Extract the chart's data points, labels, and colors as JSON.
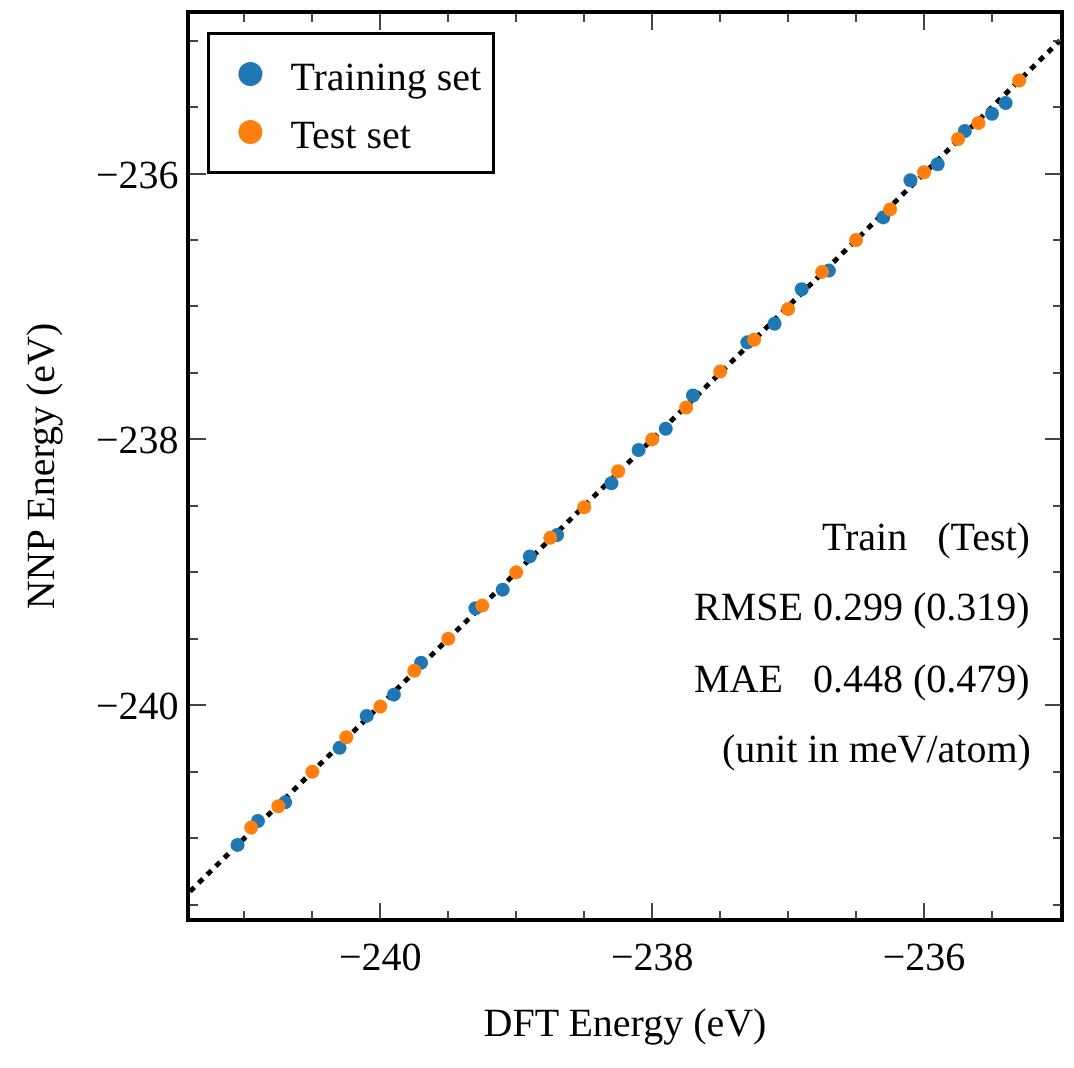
{
  "chart_data": {
    "type": "scatter",
    "xlabel": "DFT Energy (eV)",
    "ylabel": "NNP Energy (eV)",
    "xlim": [
      -241.4,
      -235.0
    ],
    "ylim": [
      -241.6,
      -234.8
    ],
    "xticks": [
      {
        "value": -241,
        "label": null
      },
      {
        "value": -240.5,
        "label": null
      },
      {
        "value": -240,
        "label": "−240"
      },
      {
        "value": -239.5,
        "label": null
      },
      {
        "value": -239,
        "label": null
      },
      {
        "value": -238.5,
        "label": null
      },
      {
        "value": -238,
        "label": "−238"
      },
      {
        "value": -237.5,
        "label": null
      },
      {
        "value": -237,
        "label": null
      },
      {
        "value": -236.5,
        "label": null
      },
      {
        "value": -236,
        "label": "−236"
      },
      {
        "value": -235.5,
        "label": null
      }
    ],
    "yticks": [
      {
        "value": -241.5,
        "label": null
      },
      {
        "value": -241,
        "label": null
      },
      {
        "value": -240.5,
        "label": null
      },
      {
        "value": -240,
        "label": "−240"
      },
      {
        "value": -239.5,
        "label": null
      },
      {
        "value": -239,
        "label": null
      },
      {
        "value": -238.5,
        "label": null
      },
      {
        "value": -238,
        "label": "−238"
      },
      {
        "value": -237.5,
        "label": null
      },
      {
        "value": -237,
        "label": null
      },
      {
        "value": -236.5,
        "label": null
      },
      {
        "value": -236,
        "label": "−236"
      },
      {
        "value": -235.5,
        "label": null
      },
      {
        "value": -235,
        "label": null
      }
    ],
    "marker": "circle",
    "legend": "top left",
    "series": [
      {
        "name": "Training set",
        "color": "#1f77b4",
        "x": [
          -241.05,
          -240.9,
          -240.7,
          -240.5,
          -240.3,
          -240.1,
          -239.9,
          -239.7,
          -239.5,
          -239.3,
          -239.1,
          -238.9,
          -238.7,
          -238.5,
          -238.3,
          -238.1,
          -237.9,
          -237.7,
          -237.5,
          -237.3,
          -237.1,
          -236.9,
          -236.7,
          -236.5,
          -236.3,
          -236.1,
          -235.9,
          -235.7,
          -235.5,
          -235.4
        ],
        "values": [
          -241.05,
          -240.87,
          -240.73,
          null,
          -240.32,
          -240.08,
          -239.92,
          -239.68,
          null,
          -239.27,
          -239.13,
          -238.88,
          -238.72,
          null,
          -238.33,
          -238.08,
          -237.92,
          -237.67,
          null,
          -237.27,
          -237.13,
          -236.87,
          -236.73,
          null,
          -236.33,
          -236.05,
          -235.93,
          -235.68,
          -235.55,
          -235.47
        ]
      },
      {
        "name": "Test set",
        "color": "#ff7f0e",
        "x": [
          -240.95,
          -240.75,
          -240.5,
          -240.25,
          -240.0,
          -239.75,
          -239.5,
          -239.25,
          -239.0,
          -238.75,
          -238.5,
          -238.25,
          -238.0,
          -237.75,
          -237.5,
          -237.25,
          -237.0,
          -236.75,
          -236.5,
          -236.25,
          -236.0,
          -235.75,
          -235.6,
          -235.3
        ],
        "values": [
          -240.92,
          -240.76,
          -240.5,
          -240.24,
          -240.01,
          -239.74,
          -239.5,
          -239.25,
          -239.0,
          -238.74,
          -238.51,
          -238.24,
          -238.0,
          -237.76,
          -237.49,
          -237.25,
          -237.02,
          -236.74,
          -236.5,
          -236.27,
          -235.99,
          -235.74,
          -235.62,
          -235.3
        ]
      },
      {
        "type": "line",
        "color": "#000000",
        "line_style": "dotted",
        "marker": "none",
        "x": [
          -241.4,
          -235.0
        ],
        "values": [
          -241.4,
          -235.0
        ]
      }
    ],
    "annotations": [
      "Train   (Test)",
      "RMSE 0.299 (0.319)",
      "MAE   0.448 (0.479)",
      "(unit in meV/atom)"
    ]
  }
}
